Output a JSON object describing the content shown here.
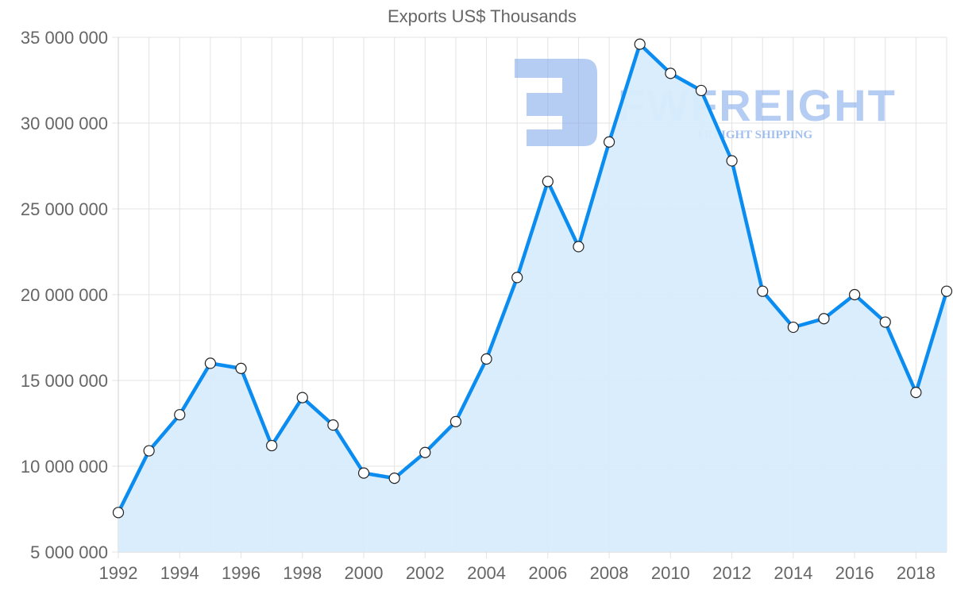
{
  "chart_data": {
    "type": "area",
    "title": "Exports US$ Thousands",
    "xlabel": "",
    "ylabel": "",
    "ylim": [
      5000000,
      35000000
    ],
    "grid": true,
    "legend": "none",
    "x": [
      1992,
      1993,
      1994,
      1995,
      1996,
      1997,
      1998,
      1999,
      2000,
      2001,
      2002,
      2003,
      2004,
      2005,
      2006,
      2007,
      2008,
      2009,
      2010,
      2011,
      2012,
      2013,
      2014,
      2015,
      2016,
      2017,
      2018,
      2019
    ],
    "series": [
      {
        "name": "Exports US$ Thousands",
        "color": "#0a8cf0",
        "fill": "#d8ecfc",
        "values": [
          7300000,
          10900000,
          13000000,
          16000000,
          15700000,
          11200000,
          14000000,
          12400000,
          9600000,
          9300000,
          10800000,
          12600000,
          16250000,
          21000000,
          26600000,
          22800000,
          28900000,
          34600000,
          32900000,
          31900000,
          27800000,
          20200000,
          18100000,
          18600000,
          20000000,
          18400000,
          14300000,
          20200000
        ]
      }
    ],
    "y_ticks": [
      "5 000 000",
      "10 000 000",
      "15 000 000",
      "20 000 000",
      "25 000 000",
      "30 000 000",
      "35 000 000"
    ],
    "x_ticks": [
      "1992",
      "1994",
      "1996",
      "1998",
      "2000",
      "2002",
      "2004",
      "2006",
      "2008",
      "2010",
      "2012",
      "2014",
      "2016",
      "2018"
    ]
  },
  "watermark": {
    "brand": "FWFREIGHT",
    "tagline": "FREIGHT SHIPPING",
    "color": "#7aa4ea"
  }
}
